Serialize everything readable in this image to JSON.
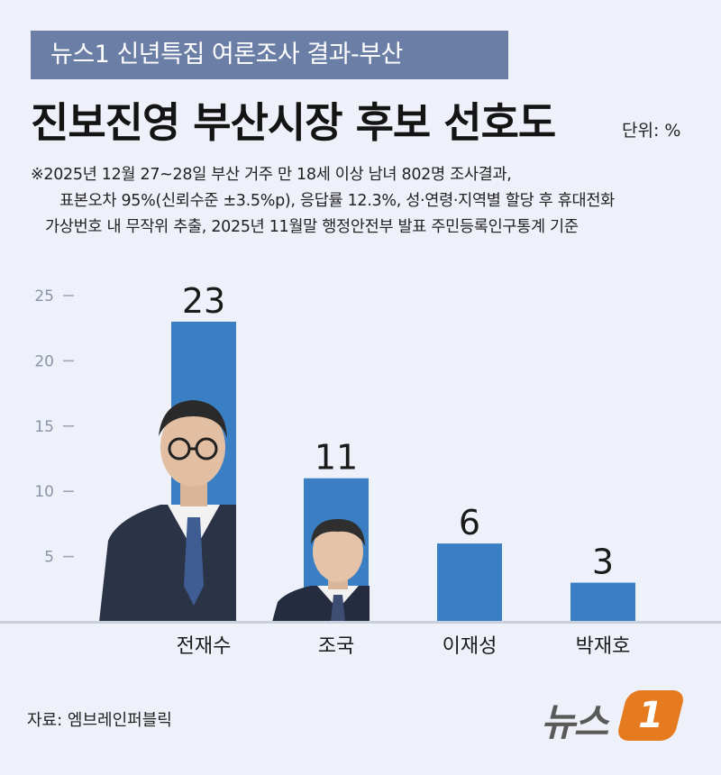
{
  "header": {
    "banner": "뉴스1 신년특집 여론조사 결과-부산",
    "title": "진보진영 부산시장 후보 선호도",
    "unit": "단위: %"
  },
  "note": {
    "line1": "※2025년 12월 27~28일 부산 거주 만 18세 이상 남녀 802명 조사결과,",
    "line2": "표본오차 95%(신뢰수준 ±3.5%p), 응답률 12.3%, 성·연령·지역별 할당 후 휴대전화",
    "line3": "가상번호 내 무작위 추출,  2025년 11월말 행정안전부 발표 주민등록인구통계 기준"
  },
  "chart_data": {
    "type": "bar",
    "categories": [
      "전재수",
      "조국",
      "이재성",
      "박재호"
    ],
    "values": [
      23,
      11,
      6,
      3
    ],
    "yticks": [
      5,
      10,
      15,
      20,
      25
    ],
    "ylim": [
      0,
      25
    ],
    "bar_color": "#3a7fc3",
    "grid": false
  },
  "footer": {
    "source": "자료: 엠브레인퍼블릭",
    "logo_text": "뉴스",
    "logo_badge": "1"
  },
  "colors": {
    "banner": "#6b7ea6",
    "background": "#eef1f9",
    "bar": "#3a7fc3",
    "logo_accent": "#e57a1f"
  }
}
